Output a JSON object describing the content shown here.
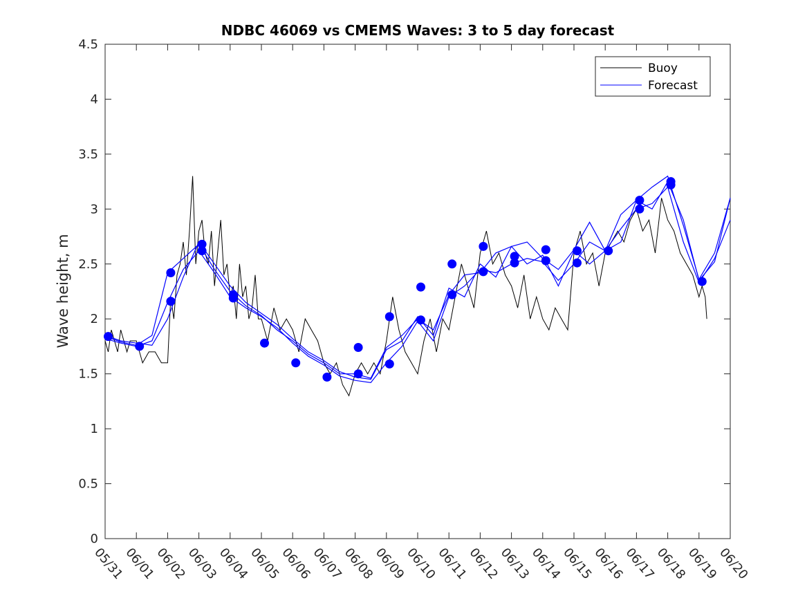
{
  "chart_data": {
    "type": "line",
    "title": "NDBC 46069 vs CMEMS Waves: 3 to 5 day forecast",
    "xlabel": "",
    "ylabel": "Wave height, m",
    "x_tick_labels": [
      "05/31",
      "06/01",
      "06/02",
      "06/03",
      "06/04",
      "06/05",
      "06/06",
      "06/07",
      "06/08",
      "06/09",
      "06/10",
      "06/11",
      "06/12",
      "06/13",
      "06/14",
      "06/15",
      "06/16",
      "06/17",
      "06/18",
      "06/19",
      "06/20"
    ],
    "xlim": [
      0,
      20
    ],
    "ylim": [
      0,
      4.5
    ],
    "y_ticks": [
      0,
      0.5,
      1,
      1.5,
      2,
      2.5,
      3,
      3.5,
      4,
      4.5
    ],
    "y_tick_labels": [
      "0",
      "0.5",
      "1",
      "1.5",
      "2",
      "2.5",
      "3",
      "3.5",
      "4",
      "4.5"
    ],
    "grid": false,
    "legend": {
      "placement": "top-right",
      "entries": [
        "Buoy",
        "Forecast"
      ]
    },
    "colors": {
      "buoy": "#000000",
      "forecast": "#0000ff",
      "marker": "#0000ff"
    },
    "buoy_series": {
      "name": "Buoy",
      "x": [
        0.0,
        0.1,
        0.2,
        0.3,
        0.4,
        0.5,
        0.6,
        0.7,
        0.8,
        1.0,
        1.2,
        1.4,
        1.6,
        1.8,
        2.0,
        2.1,
        2.2,
        2.3,
        2.4,
        2.5,
        2.6,
        2.7,
        2.8,
        2.9,
        3.0,
        3.1,
        3.2,
        3.3,
        3.4,
        3.5,
        3.6,
        3.7,
        3.8,
        3.9,
        4.0,
        4.1,
        4.2,
        4.3,
        4.4,
        4.5,
        4.6,
        4.7,
        4.8,
        4.9,
        5.0,
        5.2,
        5.4,
        5.6,
        5.8,
        6.0,
        6.2,
        6.4,
        6.6,
        6.8,
        7.0,
        7.2,
        7.4,
        7.6,
        7.8,
        8.0,
        8.2,
        8.4,
        8.6,
        8.8,
        9.0,
        9.2,
        9.4,
        9.6,
        9.8,
        10.0,
        10.2,
        10.4,
        10.6,
        10.8,
        11.0,
        11.2,
        11.4,
        11.6,
        11.8,
        12.0,
        12.2,
        12.4,
        12.6,
        12.8,
        13.0,
        13.2,
        13.4,
        13.6,
        13.8,
        14.0,
        14.2,
        14.4,
        14.6,
        14.8,
        15.0,
        15.2,
        15.4,
        15.6,
        15.8,
        16.0,
        16.2,
        16.4,
        16.6,
        16.8,
        17.0,
        17.2,
        17.4,
        17.6,
        17.8,
        18.0,
        18.2,
        18.4,
        18.6,
        18.8,
        19.0,
        19.1,
        19.2,
        19.25
      ],
      "y": [
        1.8,
        1.7,
        1.9,
        1.8,
        1.7,
        1.9,
        1.8,
        1.7,
        1.8,
        1.8,
        1.6,
        1.7,
        1.7,
        1.6,
        1.6,
        2.2,
        2.0,
        2.4,
        2.5,
        2.7,
        2.4,
        2.8,
        3.3,
        2.5,
        2.8,
        2.9,
        2.6,
        2.5,
        2.8,
        2.3,
        2.6,
        2.9,
        2.4,
        2.5,
        2.2,
        2.3,
        2.0,
        2.5,
        2.2,
        2.3,
        2.0,
        2.1,
        2.4,
        2.0,
        2.0,
        1.8,
        2.1,
        1.9,
        2.0,
        1.9,
        1.7,
        2.0,
        1.9,
        1.8,
        1.6,
        1.5,
        1.6,
        1.4,
        1.3,
        1.5,
        1.6,
        1.5,
        1.6,
        1.5,
        1.8,
        2.2,
        1.9,
        1.7,
        1.6,
        1.5,
        1.8,
        2.0,
        1.7,
        2.0,
        1.9,
        2.2,
        2.5,
        2.3,
        2.1,
        2.6,
        2.8,
        2.5,
        2.6,
        2.4,
        2.3,
        2.1,
        2.4,
        2.0,
        2.2,
        2.0,
        1.9,
        2.1,
        2.0,
        1.9,
        2.6,
        2.8,
        2.5,
        2.6,
        2.3,
        2.6,
        2.7,
        2.8,
        2.7,
        2.9,
        3.0,
        2.8,
        2.9,
        2.6,
        3.1,
        2.9,
        2.8,
        2.6,
        2.5,
        2.4,
        2.2,
        2.3,
        2.2,
        2.0
      ]
    },
    "forecast_series": [
      {
        "x": [
          0.0,
          0.5,
          1.0,
          1.5,
          2.0,
          2.5,
          3.0,
          3.5,
          4.0,
          4.5,
          5.0,
          5.5,
          6.0,
          6.5,
          7.0,
          7.5,
          8.0,
          8.5,
          9.0,
          9.5,
          10.0,
          10.5,
          11.0,
          11.5,
          12.0,
          12.5,
          13.0,
          13.5,
          14.0,
          14.5,
          15.0,
          15.5,
          16.0,
          16.5,
          17.0,
          17.5,
          18.0,
          18.5,
          19.0,
          19.5,
          20.0
        ],
        "y": [
          1.85,
          1.8,
          1.78,
          1.76,
          2.0,
          2.38,
          2.7,
          2.5,
          2.3,
          2.15,
          2.05,
          1.95,
          1.82,
          1.7,
          1.62,
          1.52,
          1.47,
          1.45,
          1.72,
          1.8,
          2.02,
          1.85,
          2.28,
          2.2,
          2.5,
          2.38,
          2.66,
          2.5,
          2.58,
          2.3,
          2.62,
          2.5,
          2.62,
          2.7,
          3.08,
          3.0,
          3.25,
          2.9,
          2.35,
          2.52,
          3.1
        ]
      },
      {
        "x": [
          0.0,
          0.5,
          1.0,
          1.5,
          2.0,
          2.5,
          3.0,
          3.5,
          4.0,
          4.5,
          5.0,
          5.5,
          6.0,
          6.5,
          7.0,
          7.5,
          8.0,
          8.5,
          9.0,
          9.5,
          10.0,
          10.5,
          11.0,
          11.5,
          12.0,
          12.5,
          13.0,
          13.5,
          14.0,
          14.5,
          15.0,
          15.5,
          16.0,
          16.5,
          17.0,
          17.5,
          18.0,
          18.5,
          19.0,
          19.5,
          20.0
        ],
        "y": [
          1.82,
          1.78,
          1.75,
          1.8,
          2.15,
          2.45,
          2.62,
          2.42,
          2.2,
          2.1,
          2.02,
          1.92,
          1.78,
          1.66,
          1.58,
          1.48,
          1.44,
          1.42,
          1.6,
          1.75,
          1.98,
          1.8,
          2.2,
          2.3,
          2.45,
          2.42,
          2.5,
          2.55,
          2.52,
          2.35,
          2.5,
          2.7,
          2.62,
          2.82,
          3.0,
          3.05,
          3.2,
          2.7,
          2.33,
          2.55,
          2.9
        ]
      },
      {
        "x": [
          0.0,
          0.5,
          1.0,
          1.5,
          2.0,
          2.5,
          3.0,
          3.5,
          4.0,
          4.5,
          5.0,
          5.5,
          6.0,
          6.5,
          7.0,
          7.5,
          8.0,
          8.5,
          9.0,
          9.5,
          10.0,
          10.5,
          11.0,
          11.5,
          12.0,
          12.5,
          13.0,
          13.5,
          14.0,
          14.5,
          15.0,
          15.5,
          16.0,
          16.5,
          17.0,
          17.5,
          18.0,
          18.5,
          19.0,
          19.5,
          20.0
        ],
        "y": [
          1.84,
          1.79,
          1.76,
          1.85,
          2.42,
          2.55,
          2.68,
          2.45,
          2.25,
          2.12,
          2.03,
          1.9,
          1.8,
          1.68,
          1.6,
          1.5,
          1.5,
          1.46,
          1.74,
          1.85,
          2.0,
          1.9,
          2.22,
          2.4,
          2.42,
          2.6,
          2.66,
          2.7,
          2.55,
          2.45,
          2.63,
          2.88,
          2.62,
          2.95,
          3.08,
          3.2,
          3.3,
          2.85,
          2.36,
          2.6,
          3.1
        ]
      }
    ],
    "markers": {
      "x": [
        0.1,
        1.1,
        2.1,
        2.1,
        3.1,
        3.1,
        4.1,
        4.1,
        5.1,
        6.1,
        7.1,
        8.1,
        8.1,
        9.1,
        9.1,
        10.1,
        10.1,
        11.1,
        11.1,
        12.1,
        12.1,
        13.1,
        13.1,
        14.1,
        14.1,
        15.1,
        15.1,
        16.1,
        17.1,
        17.1,
        18.1,
        18.1,
        19.1
      ],
      "y": [
        1.84,
        1.75,
        2.42,
        2.16,
        2.68,
        2.62,
        2.22,
        2.19,
        1.78,
        1.6,
        1.47,
        1.5,
        1.74,
        1.59,
        2.02,
        1.99,
        2.29,
        2.22,
        2.5,
        2.43,
        2.66,
        2.51,
        2.57,
        2.53,
        2.63,
        2.51,
        2.62,
        2.62,
        3.08,
        3.0,
        3.25,
        3.22,
        2.34
      ]
    }
  }
}
